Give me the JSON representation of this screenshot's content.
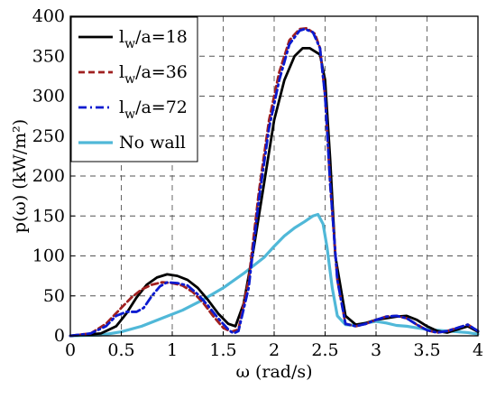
{
  "chart_data": {
    "type": "line",
    "xlabel": "ω (rad/s)",
    "ylabel": "p(ω) (kW/m²)",
    "xlim": [
      0,
      4
    ],
    "ylim": [
      0,
      400
    ],
    "xticks": [
      "0",
      "0.5",
      "1",
      "1.5",
      "2",
      "2.5",
      "3",
      "3.5",
      "4"
    ],
    "yticks": [
      "0",
      "50",
      "100",
      "150",
      "200",
      "250",
      "300",
      "350",
      "400"
    ],
    "grid": true,
    "legend_position": "top-left",
    "series": [
      {
        "name": "lw/a=18",
        "legend_main": "l",
        "legend_sub": "w",
        "legend_rest": "/a=18",
        "color": "#000000",
        "dash": "solid",
        "x": [
          0,
          0.3,
          0.45,
          0.55,
          0.65,
          0.75,
          0.85,
          0.95,
          1.05,
          1.15,
          1.25,
          1.35,
          1.45,
          1.55,
          1.62,
          1.7,
          1.8,
          1.9,
          2.0,
          2.1,
          2.2,
          2.28,
          2.35,
          2.45,
          2.5,
          2.55,
          2.6,
          2.7,
          2.8,
          2.9,
          3.0,
          3.1,
          3.2,
          3.3,
          3.4,
          3.5,
          3.6,
          3.7,
          3.8,
          3.9,
          4.0
        ],
        "y": [
          0,
          3,
          12,
          28,
          48,
          64,
          73,
          77,
          75,
          70,
          60,
          45,
          28,
          15,
          12,
          40,
          110,
          190,
          270,
          320,
          350,
          360,
          360,
          352,
          320,
          220,
          100,
          25,
          14,
          16,
          20,
          22,
          24,
          25,
          20,
          12,
          6,
          4,
          8,
          12,
          5
        ]
      },
      {
        "name": "lw/a=36",
        "legend_main": "l",
        "legend_sub": "w",
        "legend_rest": "/a=36",
        "color": "#a02020",
        "dash": "dashed",
        "x": [
          0,
          0.2,
          0.35,
          0.5,
          0.6,
          0.7,
          0.8,
          0.9,
          1.0,
          1.1,
          1.2,
          1.3,
          1.4,
          1.5,
          1.58,
          1.65,
          1.75,
          1.85,
          1.95,
          2.05,
          2.15,
          2.25,
          2.32,
          2.4,
          2.45,
          2.5,
          2.55,
          2.62,
          2.7,
          2.8,
          2.9,
          3.0,
          3.1,
          3.2,
          3.3,
          3.4,
          3.5,
          3.6,
          3.7,
          3.8,
          3.9,
          4.0
        ],
        "y": [
          0,
          3,
          15,
          35,
          48,
          58,
          64,
          67,
          66,
          63,
          55,
          42,
          25,
          10,
          5,
          8,
          70,
          180,
          270,
          330,
          370,
          384,
          385,
          378,
          360,
          300,
          190,
          70,
          15,
          12,
          15,
          20,
          24,
          25,
          22,
          14,
          7,
          4,
          6,
          10,
          14,
          6
        ]
      },
      {
        "name": "lw/a=72",
        "legend_main": "l",
        "legend_sub": "w",
        "legend_rest": "/a=72",
        "color": "#0a1ad0",
        "dash": "dashdot",
        "x": [
          0,
          0.2,
          0.35,
          0.45,
          0.55,
          0.65,
          0.72,
          0.8,
          0.88,
          0.95,
          1.05,
          1.15,
          1.25,
          1.35,
          1.45,
          1.55,
          1.6,
          1.65,
          1.75,
          1.85,
          1.95,
          2.05,
          2.15,
          2.25,
          2.3,
          2.38,
          2.45,
          2.5,
          2.55,
          2.62,
          2.7,
          2.8,
          2.9,
          3.0,
          3.1,
          3.2,
          3.3,
          3.4,
          3.5,
          3.6,
          3.7,
          3.8,
          3.9,
          4.0
        ],
        "y": [
          0,
          3,
          12,
          25,
          30,
          30,
          35,
          50,
          62,
          67,
          66,
          63,
          52,
          38,
          22,
          8,
          3,
          6,
          60,
          170,
          260,
          320,
          365,
          382,
          384,
          380,
          360,
          300,
          190,
          70,
          15,
          12,
          15,
          20,
          24,
          25,
          22,
          14,
          7,
          4,
          6,
          10,
          14,
          6
        ]
      },
      {
        "name": "No wall",
        "legend_main": "No wall",
        "legend_sub": "",
        "legend_rest": "",
        "color": "#50b8d8",
        "dash": "solid",
        "x": [
          0,
          0.3,
          0.5,
          0.7,
          0.9,
          1.1,
          1.3,
          1.5,
          1.7,
          1.9,
          2.0,
          2.1,
          2.2,
          2.3,
          2.38,
          2.43,
          2.48,
          2.52,
          2.57,
          2.62,
          2.7,
          2.8,
          2.9,
          3.0,
          3.1,
          3.2,
          3.3,
          3.4,
          3.5,
          3.6,
          3.7,
          3.8,
          3.9,
          4.0
        ],
        "y": [
          0,
          1,
          5,
          12,
          22,
          32,
          45,
          60,
          78,
          98,
          112,
          125,
          135,
          143,
          150,
          152,
          140,
          110,
          60,
          25,
          14,
          13,
          16,
          18,
          16,
          13,
          12,
          10,
          8,
          7,
          6,
          5,
          4,
          2
        ]
      }
    ]
  }
}
